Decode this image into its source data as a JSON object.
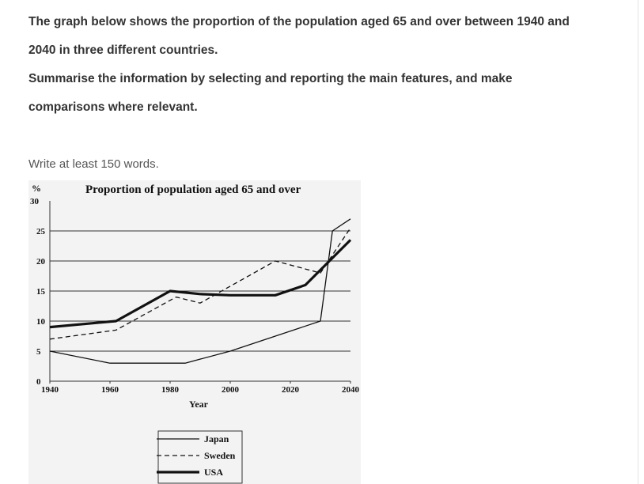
{
  "prompt": {
    "line1": "The graph below shows the proportion of the population aged 65 and over between 1940 and",
    "line2": "2040 in three different countries.",
    "line3": "Summarise the information by selecting and reporting the main features, and make",
    "line4": "comparisons where relevant."
  },
  "instruction": "Write at least 150 words.",
  "colors": {
    "text": "#333333",
    "chart_bg": "#f3f3f3",
    "ink": "#111111"
  },
  "chart_data": {
    "type": "line",
    "title": "Proportion of population aged 65 and over",
    "ylabel": "%",
    "xlabel": "Year",
    "x_ticks": [
      "1940",
      "1960",
      "1980",
      "2000",
      "2020",
      "2040"
    ],
    "y_ticks": [
      "0",
      "5",
      "10",
      "15",
      "20",
      "25",
      "30"
    ],
    "xlim": [
      1940,
      2040
    ],
    "ylim": [
      0,
      30
    ],
    "grid": "horizontal",
    "legend_position": "bottom",
    "series": [
      {
        "name": "Japan",
        "style": "thin-solid",
        "x": [
          1940,
          1960,
          1985,
          2000,
          2030,
          2034,
          2040
        ],
        "values": [
          5,
          3,
          3,
          5,
          10,
          25,
          27
        ]
      },
      {
        "name": "Sweden",
        "style": "dashed",
        "x": [
          1940,
          1962,
          1982,
          1990,
          2015,
          2030,
          2040
        ],
        "values": [
          7,
          8.5,
          14,
          13,
          20,
          18,
          25.5
        ]
      },
      {
        "name": "USA",
        "style": "thick-solid",
        "x": [
          1940,
          1962,
          1980,
          1990,
          2000,
          2015,
          2025,
          2040
        ],
        "values": [
          9,
          10,
          15,
          14.5,
          14.3,
          14.3,
          16,
          23.5
        ]
      }
    ]
  }
}
